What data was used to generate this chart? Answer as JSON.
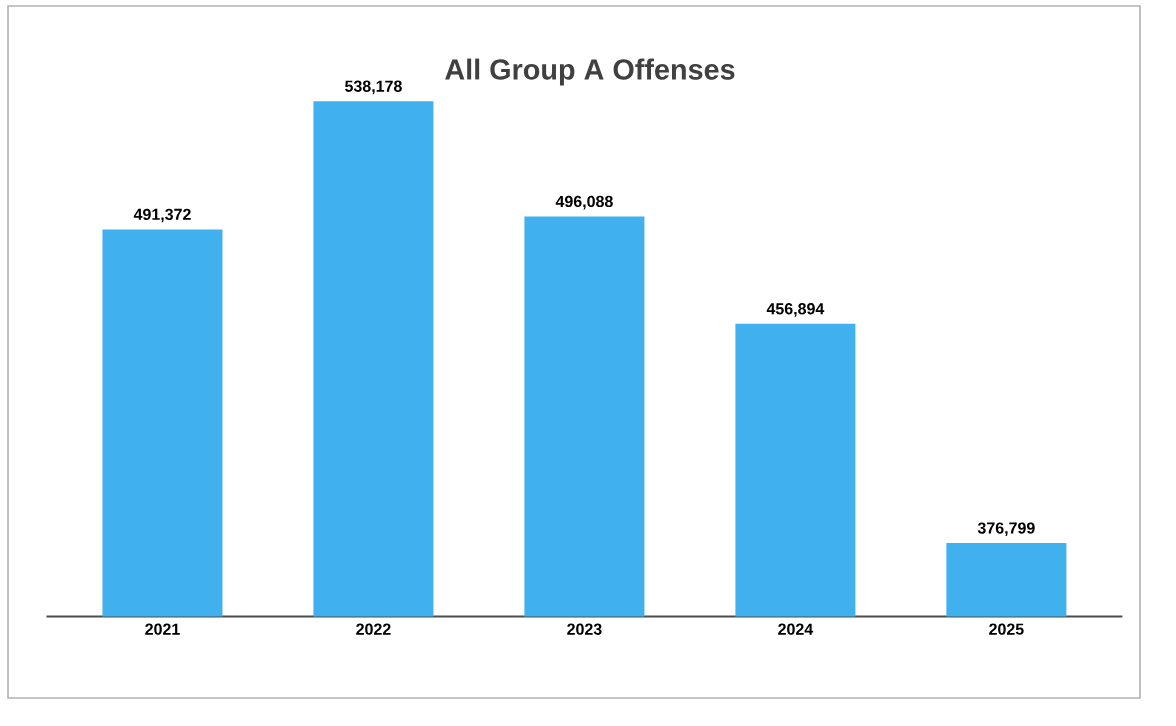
{
  "chart_data": {
    "type": "bar",
    "title": "All Group A Offenses",
    "categories": [
      "2021",
      "2022",
      "2023",
      "2024",
      "2025"
    ],
    "values": [
      491372,
      538178,
      496088,
      456894,
      376799
    ],
    "value_labels": [
      "491,372",
      "538,178",
      "496,088",
      "456,894",
      "376,799"
    ],
    "color": "#41b0ef",
    "ylim": [
      350000,
      538178
    ],
    "tick_labels": "x"
  }
}
